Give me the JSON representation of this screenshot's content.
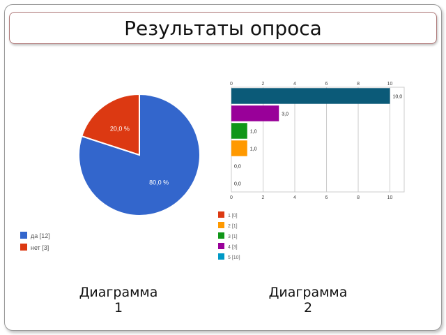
{
  "slide": {
    "title": "Результаты опроса",
    "captions": [
      {
        "line1": "Диаграмма",
        "line2": "1"
      },
      {
        "line1": "Диаграмма",
        "line2": "2"
      }
    ]
  },
  "chart_data": [
    {
      "type": "pie",
      "categories": [
        "да",
        "нет"
      ],
      "values": [
        12,
        3
      ],
      "slice_labels": [
        "80,0 %",
        "20,0 %"
      ],
      "legend_labels": [
        "да [12]",
        "нет [3]"
      ],
      "colors": [
        "#3366cc",
        "#dc3912"
      ],
      "legend_placement": "bottom-left"
    },
    {
      "type": "bar",
      "orientation": "horizontal",
      "categories": [
        "5",
        "4",
        "3",
        "2",
        "1",
        ""
      ],
      "values": [
        10,
        3,
        1,
        1,
        0,
        0
      ],
      "data_labels": [
        "10,0",
        "3,0",
        "1,0",
        "1,0",
        "0,0",
        "0,0"
      ],
      "colors": [
        "#0b5a78",
        "#990099",
        "#109618",
        "#ff9900",
        "#dc3912",
        "#dc3912"
      ],
      "xlim": [
        0,
        10.9
      ],
      "xticks": [
        "0",
        "2",
        "4",
        "6",
        "8",
        "10"
      ],
      "xtick_values": [
        0,
        2,
        4,
        6,
        8,
        10
      ],
      "grid": true,
      "legend_placement": "bottom-left",
      "legend": [
        {
          "label": "1  [0]",
          "color": "#dc3912"
        },
        {
          "label": "2  [1]",
          "color": "#ff9900"
        },
        {
          "label": "3  [1]",
          "color": "#109618"
        },
        {
          "label": "4  [3]",
          "color": "#990099"
        },
        {
          "label": "5  [10]",
          "color": "#0099c6"
        }
      ]
    }
  ]
}
